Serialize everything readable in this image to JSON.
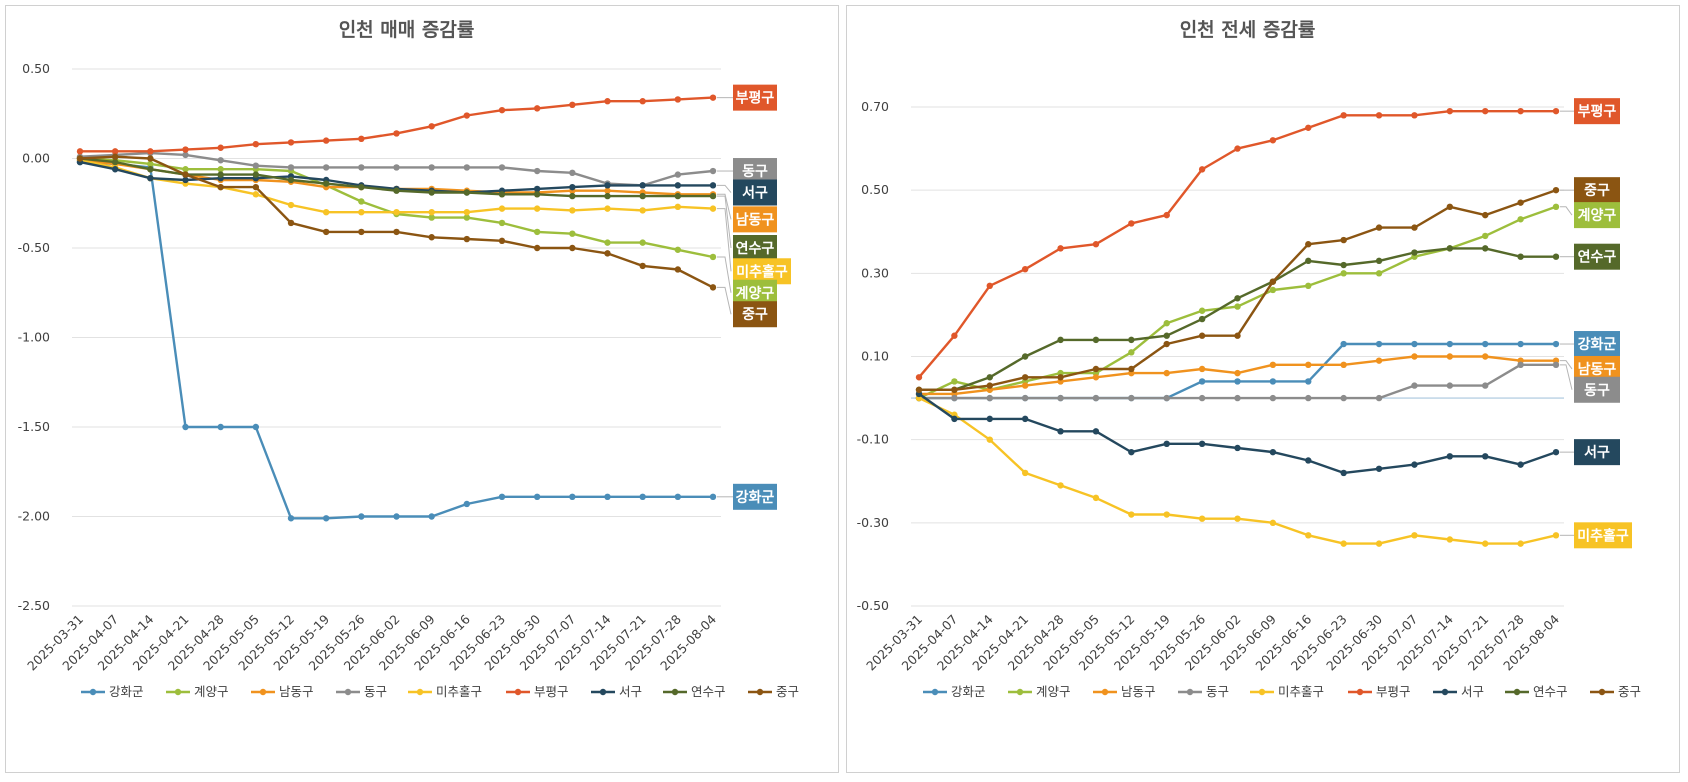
{
  "chart_data": [
    {
      "type": "line",
      "title": "인천 매매 증감률",
      "xlabel": "",
      "ylabel": "",
      "ylim": [
        -2.5,
        0.5
      ],
      "yticks": [
        "0.50",
        "0.00",
        "-0.50",
        "-1.00",
        "-1.50",
        "-2.00",
        "-2.50"
      ],
      "categories": [
        "2025-03-31",
        "2025-04-07",
        "2025-04-14",
        "2025-04-21",
        "2025-04-28",
        "2025-05-05",
        "2025-05-12",
        "2025-05-19",
        "2025-05-26",
        "2025-06-02",
        "2025-06-09",
        "2025-06-16",
        "2025-06-23",
        "2025-06-30",
        "2025-07-07",
        "2025-07-14",
        "2025-07-21",
        "2025-07-28",
        "2025-08-04"
      ],
      "legend": "bottom",
      "grid": true,
      "series": [
        {
          "name": "강화군",
          "color": "#4A8DB8",
          "values": [
            -0.02,
            -0.03,
            -0.05,
            -1.5,
            -1.5,
            -1.5,
            -2.01,
            -2.01,
            -2.0,
            -2.0,
            -2.0,
            -1.93,
            -1.89,
            -1.89,
            -1.89,
            -1.89,
            -1.89,
            -1.89,
            -1.89
          ]
        },
        {
          "name": "계양구",
          "color": "#9DBE3C",
          "values": [
            0.0,
            -0.01,
            -0.03,
            -0.06,
            -0.06,
            -0.06,
            -0.07,
            -0.15,
            -0.24,
            -0.31,
            -0.33,
            -0.33,
            -0.36,
            -0.41,
            -0.42,
            -0.47,
            -0.47,
            -0.51,
            -0.55
          ]
        },
        {
          "name": "남동구",
          "color": "#F0921E",
          "values": [
            -0.01,
            -0.03,
            -0.06,
            -0.09,
            -0.12,
            -0.12,
            -0.13,
            -0.16,
            -0.16,
            -0.17,
            -0.17,
            -0.18,
            -0.19,
            -0.19,
            -0.18,
            -0.18,
            -0.19,
            -0.2,
            -0.2
          ]
        },
        {
          "name": "동구",
          "color": "#8C8C8C",
          "values": [
            0.01,
            0.02,
            0.03,
            0.02,
            -0.01,
            -0.04,
            -0.05,
            -0.05,
            -0.05,
            -0.05,
            -0.05,
            -0.05,
            -0.05,
            -0.07,
            -0.08,
            -0.14,
            -0.15,
            -0.09,
            -0.07
          ]
        },
        {
          "name": "미추홀구",
          "color": "#F7C325",
          "values": [
            -0.01,
            -0.05,
            -0.11,
            -0.14,
            -0.16,
            -0.2,
            -0.26,
            -0.3,
            -0.3,
            -0.3,
            -0.3,
            -0.3,
            -0.28,
            -0.28,
            -0.29,
            -0.28,
            -0.29,
            -0.27,
            -0.28
          ]
        },
        {
          "name": "부평구",
          "color": "#E0572A",
          "values": [
            0.04,
            0.04,
            0.04,
            0.05,
            0.06,
            0.08,
            0.09,
            0.1,
            0.11,
            0.14,
            0.18,
            0.24,
            0.27,
            0.28,
            0.3,
            0.32,
            0.32,
            0.33,
            0.34
          ]
        },
        {
          "name": "서구",
          "color": "#24485E",
          "values": [
            -0.02,
            -0.06,
            -0.11,
            -0.12,
            -0.11,
            -0.11,
            -0.1,
            -0.12,
            -0.15,
            -0.17,
            -0.18,
            -0.19,
            -0.18,
            -0.17,
            -0.16,
            -0.15,
            -0.15,
            -0.15,
            -0.15
          ]
        },
        {
          "name": "연수구",
          "color": "#55692A",
          "values": [
            0.0,
            -0.02,
            -0.06,
            -0.09,
            -0.09,
            -0.09,
            -0.12,
            -0.14,
            -0.16,
            -0.18,
            -0.19,
            -0.19,
            -0.2,
            -0.2,
            -0.21,
            -0.21,
            -0.21,
            -0.21,
            -0.21
          ]
        },
        {
          "name": "중구",
          "color": "#8B5512",
          "values": [
            0.0,
            0.01,
            0.0,
            -0.09,
            -0.16,
            -0.16,
            -0.36,
            -0.41,
            -0.41,
            -0.41,
            -0.44,
            -0.45,
            -0.46,
            -0.5,
            -0.5,
            -0.53,
            -0.6,
            -0.62,
            -0.72
          ]
        }
      ],
      "end_labels": [
        {
          "name": "부평구",
          "color": "#E0572A",
          "value": 0.34,
          "label_value": 0.34
        },
        {
          "name": "동구",
          "color": "#8C8C8C",
          "value": -0.07,
          "label_value": -0.07
        },
        {
          "name": "서구",
          "color": "#24485E",
          "value": -0.15,
          "label_value": -0.19
        },
        {
          "name": "남동구",
          "color": "#F0921E",
          "value": -0.2,
          "label_value": -0.34
        },
        {
          "name": "연수구",
          "color": "#55692A",
          "value": -0.21,
          "label_value": -0.5
        },
        {
          "name": "미추홀구",
          "color": "#F7C325",
          "value": -0.28,
          "label_value": -0.63
        },
        {
          "name": "계양구",
          "color": "#9DBE3C",
          "value": -0.55,
          "label_value": -0.75
        },
        {
          "name": "중구",
          "color": "#8B5512",
          "value": -0.72,
          "label_value": -0.87
        },
        {
          "name": "강화군",
          "color": "#4A8DB8",
          "value": -1.89,
          "label_value": -1.89
        }
      ]
    },
    {
      "type": "line",
      "title": "인천 전세 증감률",
      "xlabel": "",
      "ylabel": "",
      "ylim": [
        -0.5,
        0.8
      ],
      "yticks": [
        "0.70",
        "0.50",
        "0.30",
        "0.10",
        "-0.10",
        "-0.30",
        "-0.50"
      ],
      "categories": [
        "2025-03-31",
        "2025-04-07",
        "2025-04-14",
        "2025-04-21",
        "2025-04-28",
        "2025-05-05",
        "2025-05-12",
        "2025-05-19",
        "2025-05-26",
        "2025-06-02",
        "2025-06-09",
        "2025-06-16",
        "2025-06-23",
        "2025-06-30",
        "2025-07-07",
        "2025-07-14",
        "2025-07-21",
        "2025-07-28",
        "2025-08-04"
      ],
      "legend": "bottom",
      "grid": true,
      "series": [
        {
          "name": "강화군",
          "color": "#4A8DB8",
          "values": [
            0.0,
            0.0,
            0.0,
            0.0,
            0.0,
            0.0,
            0.0,
            0.0,
            0.04,
            0.04,
            0.04,
            0.04,
            0.13,
            0.13,
            0.13,
            0.13,
            0.13,
            0.13,
            0.13
          ]
        },
        {
          "name": "계양구",
          "color": "#9DBE3C",
          "values": [
            0.0,
            0.04,
            0.02,
            0.04,
            0.06,
            0.06,
            0.11,
            0.18,
            0.21,
            0.22,
            0.26,
            0.27,
            0.3,
            0.3,
            0.34,
            0.36,
            0.39,
            0.43,
            0.46
          ]
        },
        {
          "name": "남동구",
          "color": "#F0921E",
          "values": [
            0.01,
            0.01,
            0.02,
            0.03,
            0.04,
            0.05,
            0.06,
            0.06,
            0.07,
            0.06,
            0.08,
            0.08,
            0.08,
            0.09,
            0.1,
            0.1,
            0.1,
            0.09,
            0.09
          ]
        },
        {
          "name": "동구",
          "color": "#8C8C8C",
          "values": [
            0.0,
            0.0,
            0.0,
            0.0,
            0.0,
            0.0,
            0.0,
            0.0,
            0.0,
            0.0,
            0.0,
            0.0,
            0.0,
            0.0,
            0.03,
            0.03,
            0.03,
            0.08,
            0.08
          ]
        },
        {
          "name": "미추홀구",
          "color": "#F7C325",
          "values": [
            0.0,
            -0.04,
            -0.1,
            -0.18,
            -0.21,
            -0.24,
            -0.28,
            -0.28,
            -0.29,
            -0.29,
            -0.3,
            -0.33,
            -0.35,
            -0.35,
            -0.33,
            -0.34,
            -0.35,
            -0.35,
            -0.33
          ]
        },
        {
          "name": "부평구",
          "color": "#E0572A",
          "values": [
            0.05,
            0.15,
            0.27,
            0.31,
            0.36,
            0.37,
            0.42,
            0.44,
            0.55,
            0.6,
            0.62,
            0.65,
            0.68,
            0.68,
            0.68,
            0.69,
            0.69,
            0.69,
            0.69
          ]
        },
        {
          "name": "서구",
          "color": "#24485E",
          "values": [
            0.01,
            -0.05,
            -0.05,
            -0.05,
            -0.08,
            -0.08,
            -0.13,
            -0.11,
            -0.11,
            -0.12,
            -0.13,
            -0.15,
            -0.18,
            -0.17,
            -0.16,
            -0.14,
            -0.14,
            -0.16,
            -0.13
          ]
        },
        {
          "name": "연수구",
          "color": "#55692A",
          "values": [
            0.02,
            0.02,
            0.05,
            0.1,
            0.14,
            0.14,
            0.14,
            0.15,
            0.19,
            0.24,
            0.28,
            0.33,
            0.32,
            0.33,
            0.35,
            0.36,
            0.36,
            0.34,
            0.34
          ]
        },
        {
          "name": "중구",
          "color": "#8B5512",
          "values": [
            0.02,
            0.02,
            0.03,
            0.05,
            0.05,
            0.07,
            0.07,
            0.13,
            0.15,
            0.15,
            0.28,
            0.37,
            0.38,
            0.41,
            0.41,
            0.46,
            0.44,
            0.47,
            0.5
          ]
        }
      ],
      "end_labels": [
        {
          "name": "부평구",
          "color": "#E0572A",
          "value": 0.69,
          "label_value": 0.69
        },
        {
          "name": "중구",
          "color": "#8B5512",
          "value": 0.5,
          "label_value": 0.5
        },
        {
          "name": "계양구",
          "color": "#9DBE3C",
          "value": 0.46,
          "label_value": 0.44
        },
        {
          "name": "연수구",
          "color": "#55692A",
          "value": 0.34,
          "label_value": 0.34
        },
        {
          "name": "강화군",
          "color": "#4A8DB8",
          "value": 0.13,
          "label_value": 0.13
        },
        {
          "name": "남동구",
          "color": "#F0921E",
          "value": 0.09,
          "label_value": 0.07
        },
        {
          "name": "동구",
          "color": "#8C8C8C",
          "value": 0.08,
          "label_value": 0.02
        },
        {
          "name": "서구",
          "color": "#24485E",
          "value": -0.13,
          "label_value": -0.13
        },
        {
          "name": "미추홀구",
          "color": "#F7C325",
          "value": -0.33,
          "label_value": -0.33
        }
      ]
    }
  ]
}
